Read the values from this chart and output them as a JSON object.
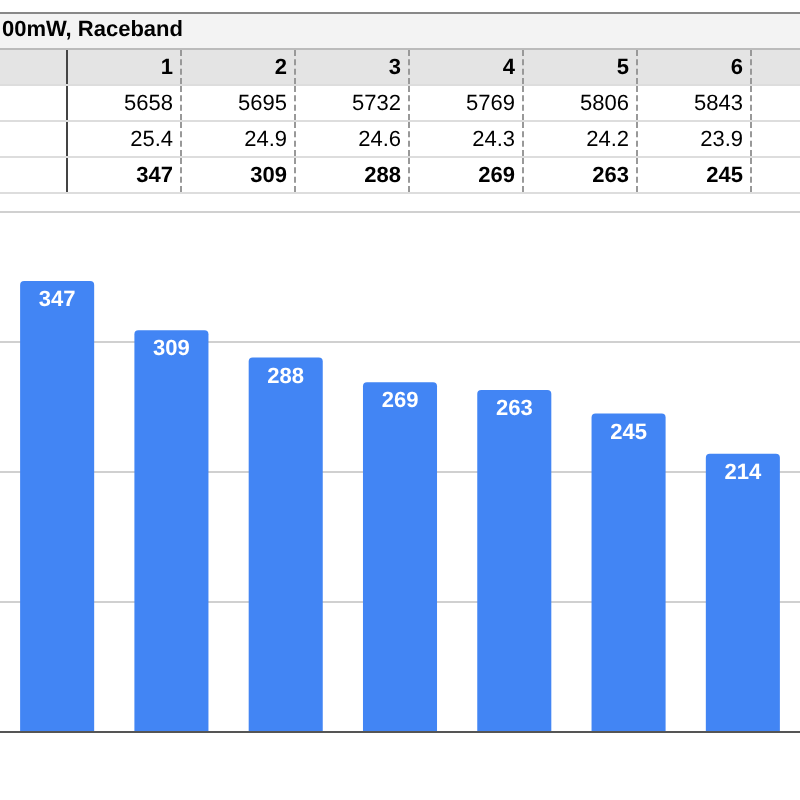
{
  "chart_data": {
    "type": "bar",
    "title": "00mW, Raceband",
    "annotations": [
      "1",
      "2",
      "3",
      "4",
      "5",
      "6",
      "5658",
      "5695",
      "5732",
      "5769",
      "5806",
      "5843",
      "25.4",
      "24.9",
      "24.6",
      "24.3",
      "24.2",
      "23.9",
      "347",
      "309",
      "288",
      "269",
      "263",
      "245"
    ],
    "categories": [
      null,
      null,
      null,
      null,
      null,
      null,
      null
    ],
    "values": [
      347,
      309,
      288,
      269,
      263,
      245,
      214
    ],
    "color": "#4285f4",
    "ylim": [
      0,
      400
    ],
    "yticks": [
      {
        "value": 0,
        "label": null
      },
      {
        "value": 100,
        "label": null
      },
      {
        "value": 200,
        "label": null
      },
      {
        "value": 300,
        "label": null
      },
      {
        "value": 400,
        "label": null
      }
    ],
    "grid": "y",
    "tick_labels": false,
    "legend": false,
    "data_labels": true
  }
}
